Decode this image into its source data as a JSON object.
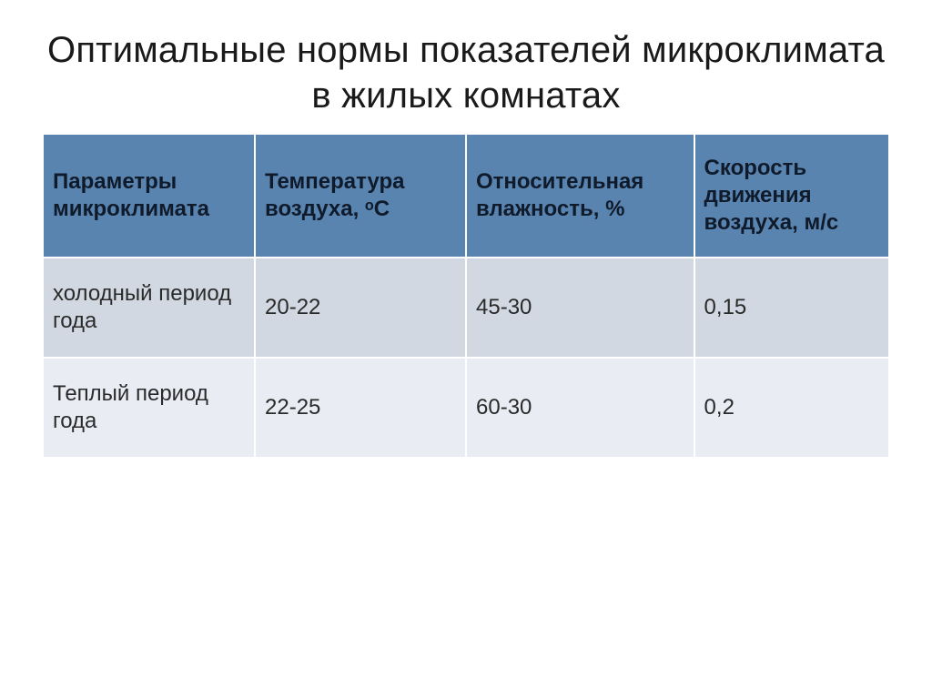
{
  "slide": {
    "title": "Оптимальные нормы показателей микроклимата в жилых комнатах",
    "title_fontsize": 40,
    "title_color": "#1a1a1a",
    "background_color": "#ffffff"
  },
  "table": {
    "type": "table",
    "header_bg": "#5a84b0",
    "header_text_color": "#0f1a2a",
    "row_colors": [
      "#d2d8e2",
      "#e9ecf2"
    ],
    "cell_text_color": "#2a2a2a",
    "border_color": "#ffffff",
    "cell_fontsize": 24,
    "header_fontweight": 700,
    "column_widths_pct": [
      25,
      25,
      27,
      23
    ],
    "columns": [
      "Параметры микроклимата",
      "Температура воздуха, ᵒС",
      "Относительная влажность, %",
      "Скорость движения воздуха, м/с"
    ],
    "rows": [
      [
        "холодный период года",
        "20-22",
        "45-30",
        "0,15"
      ],
      [
        "Теплый период года",
        "22-25",
        "60-30",
        "0,2"
      ]
    ]
  }
}
